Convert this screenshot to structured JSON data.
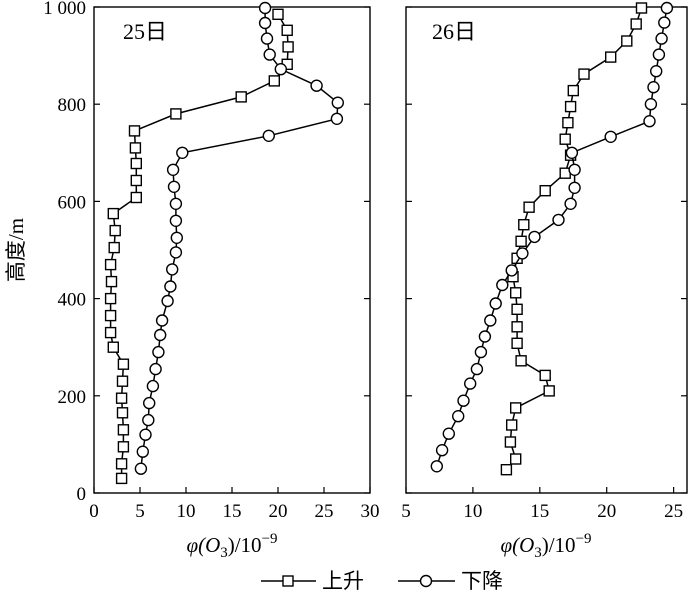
{
  "chart_data": [
    {
      "type": "line",
      "panel_label": "25日",
      "xlabel_html": "φ(O<sub>3</sub>)/10<sup>−9</sup>",
      "xlabel_parts": {
        "pre": "φ(O",
        "sub": "3",
        "mid": ")/10",
        "sup": "−9"
      },
      "ylabel": "高度/m",
      "xlim": [
        0,
        30
      ],
      "ylim": [
        0,
        1000
      ],
      "xticks": [
        0,
        5,
        10,
        15,
        20,
        25,
        30
      ],
      "yticks": [
        0,
        200,
        400,
        600,
        800,
        1000
      ],
      "ytick_labels": [
        "0",
        "200",
        "400",
        "600",
        "800",
        "1 000"
      ],
      "series": [
        {
          "name": "上升",
          "marker": "square",
          "points": [
            [
              3.0,
              30
            ],
            [
              3.0,
              60
            ],
            [
              3.2,
              95
            ],
            [
              3.2,
              130
            ],
            [
              3.1,
              165
            ],
            [
              3.0,
              195
            ],
            [
              3.1,
              230
            ],
            [
              3.2,
              265
            ],
            [
              2.1,
              300
            ],
            [
              1.8,
              330
            ],
            [
              1.8,
              365
            ],
            [
              1.8,
              400
            ],
            [
              1.9,
              435
            ],
            [
              1.8,
              470
            ],
            [
              2.2,
              505
            ],
            [
              2.3,
              540
            ],
            [
              2.1,
              575
            ],
            [
              4.6,
              608
            ],
            [
              4.6,
              643
            ],
            [
              4.6,
              678
            ],
            [
              4.5,
              710
            ],
            [
              4.4,
              745
            ],
            [
              8.9,
              780
            ],
            [
              16.0,
              815
            ],
            [
              19.6,
              848
            ],
            [
              21.0,
              882
            ],
            [
              21.1,
              918
            ],
            [
              21.0,
              952
            ],
            [
              20.0,
              985
            ]
          ]
        },
        {
          "name": "下降",
          "marker": "circle",
          "points": [
            [
              5.1,
              50
            ],
            [
              5.3,
              85
            ],
            [
              5.6,
              120
            ],
            [
              5.9,
              150
            ],
            [
              6.0,
              185
            ],
            [
              6.4,
              220
            ],
            [
              6.7,
              255
            ],
            [
              7.0,
              290
            ],
            [
              7.2,
              325
            ],
            [
              7.4,
              355
            ],
            [
              8.0,
              395
            ],
            [
              8.3,
              425
            ],
            [
              8.5,
              460
            ],
            [
              8.9,
              495
            ],
            [
              9.0,
              525
            ],
            [
              8.9,
              560
            ],
            [
              8.9,
              595
            ],
            [
              8.7,
              630
            ],
            [
              8.6,
              665
            ],
            [
              9.6,
              700
            ],
            [
              19.0,
              735
            ],
            [
              26.4,
              770
            ],
            [
              26.5,
              803
            ],
            [
              24.2,
              838
            ],
            [
              20.3,
              872
            ],
            [
              19.1,
              902
            ],
            [
              18.8,
              935
            ],
            [
              18.6,
              967
            ],
            [
              18.6,
              998
            ]
          ]
        }
      ]
    },
    {
      "type": "line",
      "panel_label": "26日",
      "xlabel_html": "φ(O<sub>3</sub>)/10<sup>−9</sup>",
      "xlabel_parts": {
        "pre": "φ(O",
        "sub": "3",
        "mid": ")/10",
        "sup": "−9"
      },
      "xlim": [
        5,
        26
      ],
      "ylim": [
        0,
        1000
      ],
      "xticks": [
        5,
        10,
        15,
        20,
        25
      ],
      "yticks": [
        0,
        200,
        400,
        600,
        800,
        1000
      ],
      "series": [
        {
          "name": "上升",
          "marker": "square",
          "points": [
            [
              12.5,
              48
            ],
            [
              13.2,
              70
            ],
            [
              12.8,
              105
            ],
            [
              12.9,
              140
            ],
            [
              13.2,
              175
            ],
            [
              15.7,
              210
            ],
            [
              15.4,
              242
            ],
            [
              13.6,
              272
            ],
            [
              13.3,
              308
            ],
            [
              13.3,
              342
            ],
            [
              13.3,
              378
            ],
            [
              13.2,
              412
            ],
            [
              13.0,
              445
            ],
            [
              13.3,
              483
            ],
            [
              13.6,
              518
            ],
            [
              13.8,
              552
            ],
            [
              14.2,
              588
            ],
            [
              15.4,
              622
            ],
            [
              16.9,
              658
            ],
            [
              17.3,
              695
            ],
            [
              16.9,
              728
            ],
            [
              17.1,
              762
            ],
            [
              17.3,
              795
            ],
            [
              17.5,
              828
            ],
            [
              18.3,
              862
            ],
            [
              20.3,
              897
            ],
            [
              21.5,
              930
            ],
            [
              22.2,
              965
            ],
            [
              22.6,
              998
            ]
          ]
        },
        {
          "name": "下降",
          "marker": "circle",
          "points": [
            [
              7.3,
              55
            ],
            [
              7.7,
              88
            ],
            [
              8.2,
              122
            ],
            [
              8.9,
              158
            ],
            [
              9.3,
              190
            ],
            [
              9.8,
              225
            ],
            [
              10.3,
              255
            ],
            [
              10.6,
              290
            ],
            [
              10.9,
              322
            ],
            [
              11.3,
              355
            ],
            [
              11.7,
              390
            ],
            [
              12.2,
              428
            ],
            [
              12.9,
              458
            ],
            [
              13.7,
              493
            ],
            [
              14.6,
              527
            ],
            [
              16.4,
              562
            ],
            [
              17.3,
              595
            ],
            [
              17.6,
              628
            ],
            [
              17.6,
              665
            ],
            [
              17.4,
              700
            ],
            [
              20.3,
              733
            ],
            [
              23.2,
              765
            ],
            [
              23.3,
              800
            ],
            [
              23.5,
              835
            ],
            [
              23.7,
              868
            ],
            [
              23.9,
              902
            ],
            [
              24.1,
              935
            ],
            [
              24.3,
              968
            ],
            [
              24.5,
              998
            ]
          ]
        }
      ]
    }
  ],
  "legend": {
    "placement": "bottom-center",
    "items": [
      {
        "label": "上升",
        "marker": "square"
      },
      {
        "label": "下降",
        "marker": "circle"
      }
    ]
  }
}
